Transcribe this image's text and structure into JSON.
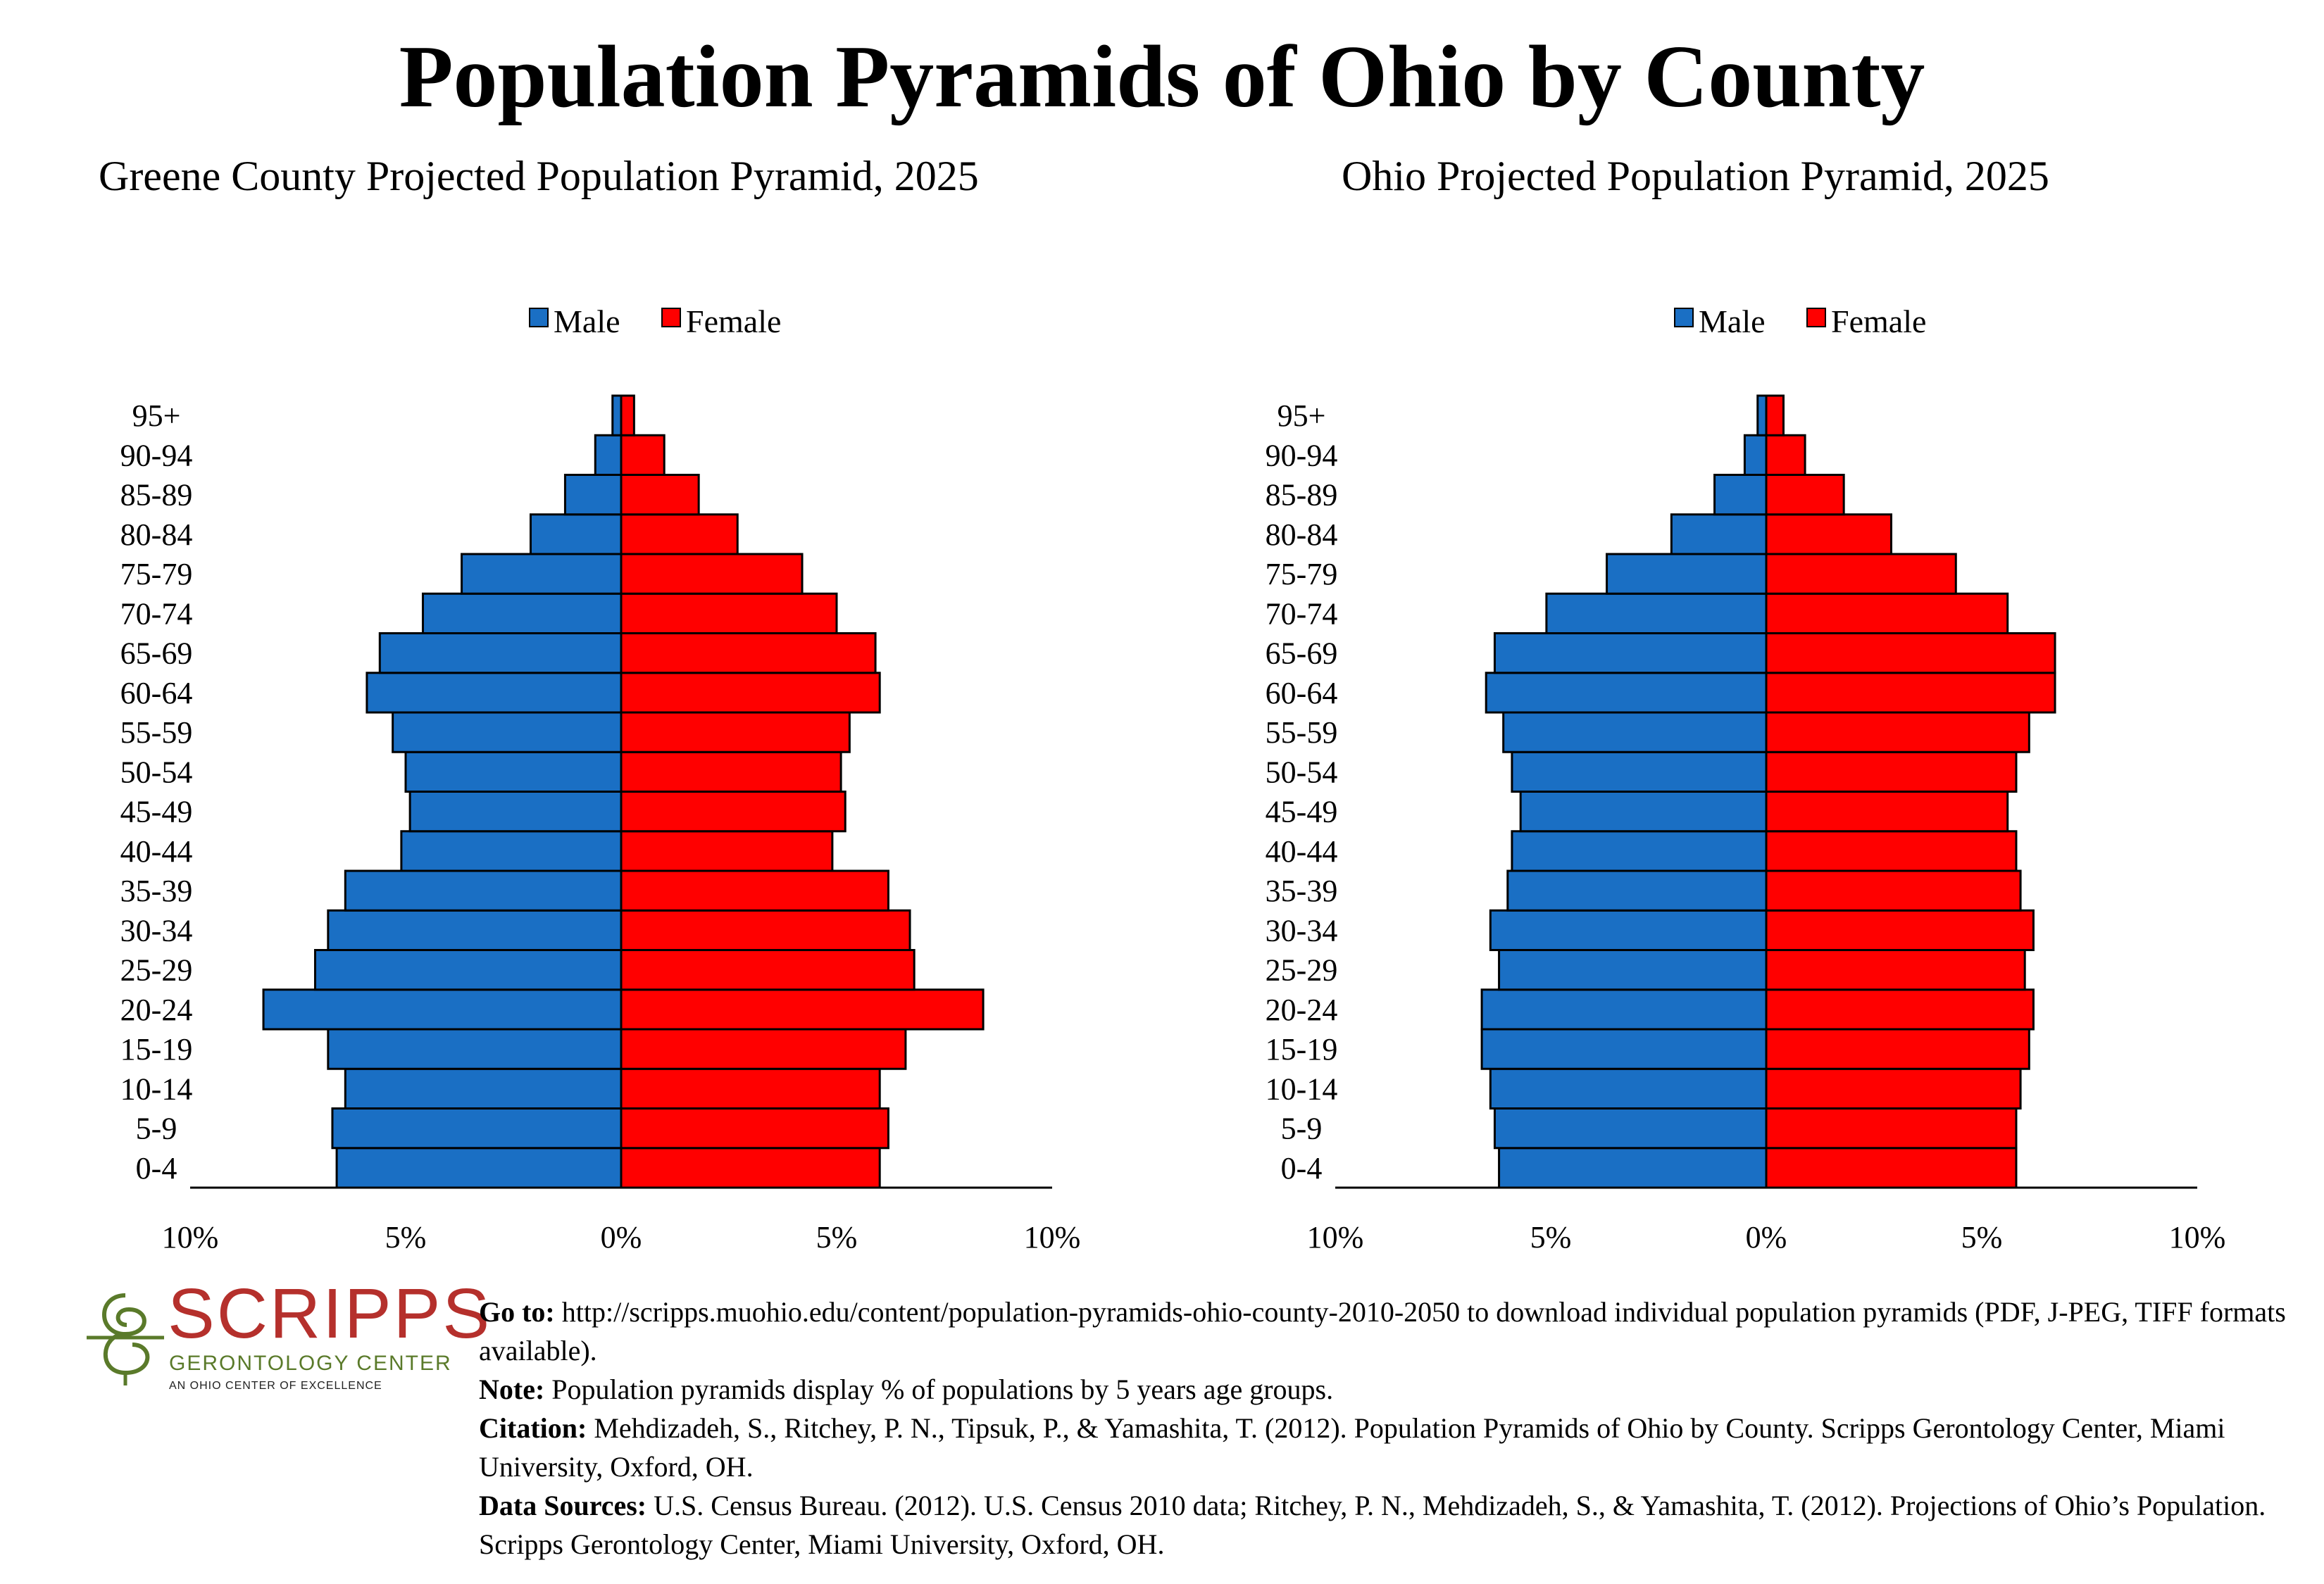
{
  "title": "Population Pyramids of Ohio by County",
  "legend": {
    "male": "Male",
    "female": "Female"
  },
  "colors": {
    "male": "#1a6fc4",
    "female": "#ff0000",
    "outline": "#000000"
  },
  "chart_data": [
    {
      "type": "bar",
      "orientation": "horizontal-pyramid",
      "title": "Greene County Projected Population Pyramid, 2025",
      "categories": [
        "0-4",
        "5-9",
        "10-14",
        "15-19",
        "20-24",
        "25-29",
        "30-34",
        "35-39",
        "40-44",
        "45-49",
        "50-54",
        "55-59",
        "60-64",
        "65-69",
        "70-74",
        "75-79",
        "80-84",
        "85-89",
        "90-94",
        "95+"
      ],
      "series": [
        {
          "name": "Male",
          "values": [
            6.6,
            6.7,
            6.4,
            6.8,
            8.3,
            7.1,
            6.8,
            6.4,
            5.1,
            4.9,
            5.0,
            5.3,
            5.9,
            5.6,
            4.6,
            3.7,
            2.1,
            1.3,
            0.6,
            0.2
          ]
        },
        {
          "name": "Female",
          "values": [
            6.0,
            6.2,
            6.0,
            6.6,
            8.4,
            6.8,
            6.7,
            6.2,
            4.9,
            5.2,
            5.1,
            5.3,
            6.0,
            5.9,
            5.0,
            4.2,
            2.7,
            1.8,
            1.0,
            0.3
          ]
        }
      ],
      "xticks": [
        "10%",
        "5%",
        "0%",
        "5%",
        "10%"
      ],
      "xlim": [
        -10,
        10
      ]
    },
    {
      "type": "bar",
      "orientation": "horizontal-pyramid",
      "title": "Ohio Projected Population Pyramid, 2025",
      "categories": [
        "0-4",
        "5-9",
        "10-14",
        "15-19",
        "20-24",
        "25-29",
        "30-34",
        "35-39",
        "40-44",
        "45-49",
        "50-54",
        "55-59",
        "60-64",
        "65-69",
        "70-74",
        "75-79",
        "80-84",
        "85-89",
        "90-94",
        "95+"
      ],
      "series": [
        {
          "name": "Male",
          "values": [
            6.2,
            6.3,
            6.4,
            6.6,
            6.6,
            6.2,
            6.4,
            6.0,
            5.9,
            5.7,
            5.9,
            6.1,
            6.5,
            6.3,
            5.1,
            3.7,
            2.2,
            1.2,
            0.5,
            0.2
          ]
        },
        {
          "name": "Female",
          "values": [
            5.8,
            5.8,
            5.9,
            6.1,
            6.2,
            6.0,
            6.2,
            5.9,
            5.8,
            5.6,
            5.8,
            6.1,
            6.7,
            6.7,
            5.6,
            4.4,
            2.9,
            1.8,
            0.9,
            0.4
          ]
        }
      ],
      "xticks": [
        "10%",
        "5%",
        "0%",
        "5%",
        "10%"
      ],
      "xlim": [
        -10,
        10
      ]
    }
  ],
  "logo": {
    "name": "SCRIPPS",
    "line1": "GERONTOLOGY CENTER",
    "line2": "AN OHIO CENTER OF EXCELLENCE",
    "colors": {
      "name": "#b5302c",
      "line1": "#5a7a2a",
      "swirl": "#5a7a2a"
    }
  },
  "footer": {
    "goto_label": "Go to:",
    "goto_text": " http://scripps.muohio.edu/content/population-pyramids-ohio-county-2010-2050 to download individual population pyramids (PDF, J-PEG, TIFF formats available).",
    "note_label": "Note:",
    "note_text": " Population pyramids display % of populations by 5 years age groups.",
    "citation_label": "Citation:",
    "citation_text": " Mehdizadeh, S., Ritchey, P. N., Tipsuk, P., & Yamashita, T. (2012). Population Pyramids of Ohio by County. Scripps Gerontology Center, Miami University, Oxford, OH.",
    "sources_label": "Data Sources:",
    "sources_text": " U.S. Census Bureau. (2012). U.S. Census 2010 data; Ritchey, P. N., Mehdizadeh, S., & Yamashita, T. (2012). Projections of Ohio’s Population. Scripps Gerontology Center, Miami University, Oxford, OH."
  }
}
